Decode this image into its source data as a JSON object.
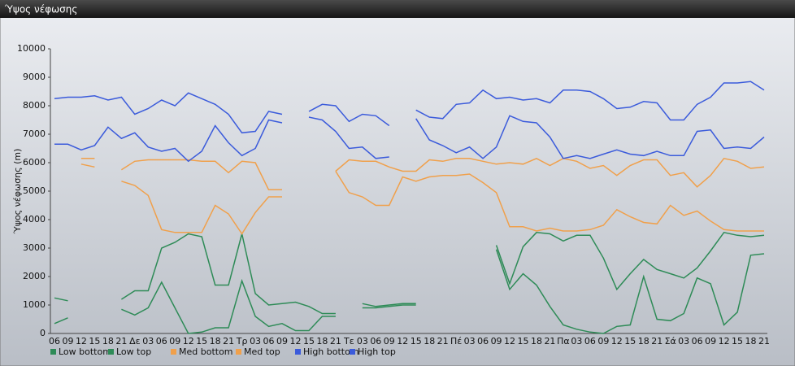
{
  "chart_data": {
    "type": "line",
    "title": "Ύψος νέφωσης",
    "y_label": "Ύψος νέφωσης (m)",
    "categories": [
      "06",
      "09",
      "12",
      "15",
      "18",
      "21",
      "Δε",
      "03",
      "06",
      "09",
      "12",
      "15",
      "18",
      "21",
      "Τρ",
      "03",
      "06",
      "09",
      "12",
      "15",
      "18",
      "21",
      "Τε",
      "03",
      "06",
      "09",
      "12",
      "15",
      "18",
      "21",
      "Πέ",
      "03",
      "06",
      "09",
      "12",
      "15",
      "18",
      "21",
      "Πα",
      "03",
      "06",
      "09",
      "12",
      "15",
      "18",
      "21",
      "Σά",
      "03",
      "06",
      "09",
      "12",
      "15",
      "18",
      "21"
    ],
    "ylim": [
      0,
      10000
    ],
    "yticks": [
      0,
      1000,
      2000,
      3000,
      4000,
      5000,
      6000,
      7000,
      8000,
      9000,
      10000
    ],
    "grid": false,
    "legend": "bottom",
    "series": [
      {
        "name": "Low bottom",
        "color": "#2e8b57",
        "values": [
          350,
          550,
          null,
          null,
          null,
          850,
          650,
          900,
          1800,
          900,
          0,
          50,
          200,
          200,
          1850,
          600,
          250,
          350,
          100,
          100,
          600,
          600,
          null,
          900,
          900,
          950,
          1000,
          1000,
          null,
          null,
          null,
          null,
          null,
          2950,
          1550,
          2100,
          1700,
          950,
          300,
          150,
          50,
          0,
          250,
          300,
          2000,
          500,
          450,
          700,
          1950,
          1750,
          300,
          750,
          2750,
          2800
        ]
      },
      {
        "name": "Low top",
        "color": "#2e8b57",
        "values": [
          1250,
          1150,
          null,
          null,
          null,
          1200,
          1500,
          1500,
          3000,
          3200,
          3500,
          3400,
          1700,
          1700,
          3500,
          1400,
          1000,
          1050,
          1100,
          950,
          700,
          700,
          null,
          1050,
          950,
          1000,
          1050,
          1050,
          null,
          null,
          null,
          null,
          null,
          3100,
          1750,
          3050,
          3550,
          3500,
          3250,
          3450,
          3450,
          2650,
          1550,
          2100,
          2600,
          2250,
          2100,
          1950,
          2300,
          2900,
          3550,
          3450,
          3400,
          3450
        ]
      },
      {
        "name": "Med bottom",
        "color": "#f0a04b",
        "values": [
          null,
          null,
          5950,
          5850,
          null,
          5350,
          5200,
          4850,
          3650,
          3550,
          3550,
          3550,
          4500,
          4200,
          3500,
          4250,
          4800,
          4800,
          null,
          null,
          null,
          5700,
          4950,
          4800,
          4500,
          4500,
          5500,
          5350,
          5500,
          5550,
          5550,
          5600,
          5300,
          4950,
          3750,
          3750,
          3600,
          3700,
          3600,
          3600,
          3650,
          3800,
          4350,
          4100,
          3900,
          3850,
          4500,
          4150,
          4300,
          3950,
          3650,
          3600,
          3600,
          3600
        ]
      },
      {
        "name": "Med top",
        "color": "#f0a04b",
        "values": [
          null,
          null,
          6150,
          6150,
          null,
          5750,
          6050,
          6100,
          6100,
          6100,
          6100,
          6050,
          6050,
          5650,
          6050,
          6000,
          5050,
          5050,
          null,
          null,
          null,
          5700,
          6100,
          6050,
          6050,
          5850,
          5700,
          5700,
          6100,
          6050,
          6150,
          6150,
          6050,
          5950,
          6000,
          5950,
          6150,
          5900,
          6150,
          6050,
          5800,
          5900,
          5550,
          5900,
          6100,
          6100,
          5550,
          5650,
          5150,
          5550,
          6150,
          6050,
          5800,
          5850
        ]
      },
      {
        "name": "High bottom",
        "color": "#3b5bdb",
        "values": [
          6650,
          6650,
          6450,
          6600,
          7250,
          6850,
          7050,
          6550,
          6400,
          6500,
          6050,
          6400,
          7300,
          6700,
          6250,
          6500,
          7500,
          7400,
          null,
          7600,
          7500,
          7100,
          6500,
          6550,
          6150,
          6200,
          null,
          7550,
          6800,
          6600,
          6350,
          6550,
          6150,
          6550,
          7650,
          7450,
          7400,
          6900,
          6150,
          6250,
          6150,
          6300,
          6450,
          6300,
          6250,
          6400,
          6250,
          6250,
          7100,
          7150,
          6500,
          6550,
          6500,
          6900
        ]
      },
      {
        "name": "High top",
        "color": "#3b5bdb",
        "values": [
          8250,
          8300,
          8300,
          8350,
          8200,
          8300,
          7700,
          7900,
          8200,
          8000,
          8450,
          8250,
          8050,
          7700,
          7050,
          7100,
          7800,
          7700,
          null,
          7800,
          8050,
          8000,
          7450,
          7700,
          7650,
          7300,
          null,
          7850,
          7600,
          7550,
          8050,
          8100,
          8550,
          8250,
          8300,
          8200,
          8250,
          8100,
          8550,
          8550,
          8500,
          8250,
          7900,
          7950,
          8150,
          8100,
          7500,
          7500,
          8050,
          8300,
          8800,
          8800,
          8850,
          8550
        ]
      }
    ]
  }
}
